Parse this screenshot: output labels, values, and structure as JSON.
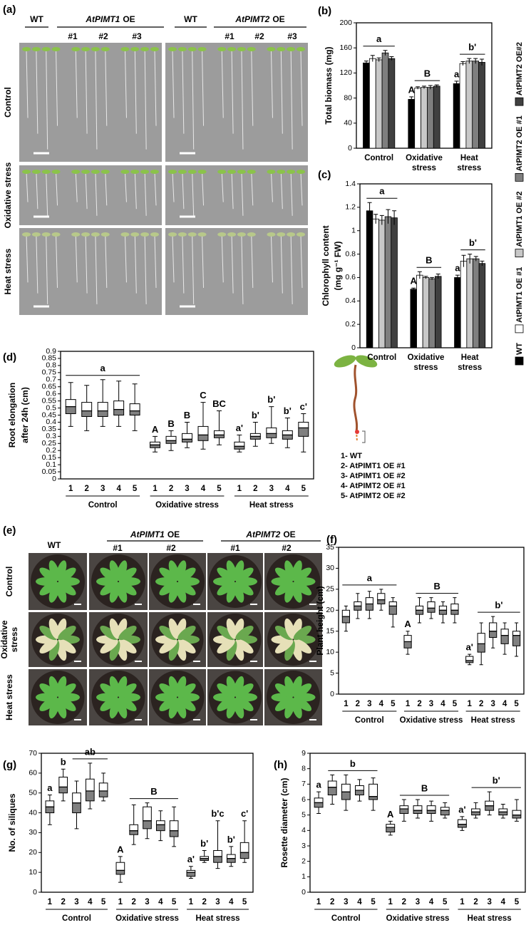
{
  "photo_panels": [
    {
      "panel_label": "(a)",
      "column_groups": [
        {
          "label": [
            "WT"
          ]
        },
        {
          "label": [
            "AtPIMT1",
            "OE"
          ],
          "sub": [
            "#1",
            "#2",
            "#3"
          ]
        },
        {
          "label": [
            "WT"
          ]
        },
        {
          "label": [
            "AtPIMT2",
            "OE"
          ],
          "sub": [
            "#1",
            "#2",
            "#3"
          ]
        }
      ],
      "row_labels": [
        [
          "Control"
        ],
        [
          "Oxidative stress"
        ],
        [
          "Heat stress"
        ]
      ]
    },
    {
      "panel_label": "(e)",
      "column_groups": [
        {
          "label": [
            "WT"
          ]
        },
        {
          "label": [
            "AtPIMT1",
            "OE"
          ],
          "sub": [
            "#1",
            "#2"
          ]
        },
        {
          "label": [
            "AtPIMT2",
            "OE"
          ],
          "sub": [
            "#1",
            "#2"
          ]
        }
      ],
      "row_labels": [
        [
          "Control"
        ],
        [
          "Oxidative",
          "stress"
        ],
        [
          "Heat stress"
        ]
      ]
    }
  ],
  "chart_data": [
    {
      "type": "bar",
      "panel_label": "(b)",
      "ylabel": [
        "Total biomass (mg)"
      ],
      "categories": [
        [
          "Control"
        ],
        [
          "Oxidative",
          "stress"
        ],
        [
          "Heat",
          "stress"
        ]
      ],
      "ylim": [
        0,
        200
      ],
      "yticks": [
        0,
        40,
        80,
        120,
        160,
        200
      ],
      "series": [
        {
          "name": "WT",
          "color": "#000000",
          "values": [
            136,
            78,
            103
          ],
          "errors": [
            3,
            4,
            4
          ]
        },
        {
          "name": "AtPIMT1 OE #1",
          "color": "#ffffff",
          "values": [
            143,
            96,
            135
          ],
          "errors": [
            5,
            2,
            3
          ]
        },
        {
          "name": "AtPIMT1 OE #2",
          "color": "#c8c8c8",
          "values": [
            141,
            97,
            139
          ],
          "errors": [
            3,
            2,
            4
          ]
        },
        {
          "name": "AtPIMT2 OE #1",
          "color": "#7f7f7f",
          "values": [
            152,
            97,
            139
          ],
          "errors": [
            4,
            3,
            4
          ]
        },
        {
          "name": "AtPIMT2 OE#2",
          "color": "#404040",
          "values": [
            143,
            99,
            137
          ],
          "errors": [
            3,
            2,
            5
          ]
        }
      ],
      "letters": [
        [
          "a"
        ],
        [
          "A",
          "B"
        ],
        [
          "a",
          "b'"
        ]
      ],
      "legend": "right"
    },
    {
      "type": "bar",
      "panel_label": "(c)",
      "ylabel": [
        "Chlorophyll content",
        "(mg g⁻¹ FW)"
      ],
      "categories": [
        [
          "Control"
        ],
        [
          "Oxidative",
          "stress"
        ],
        [
          "Heat",
          "stress"
        ]
      ],
      "ylim": [
        0,
        1.4
      ],
      "yticks": [
        0,
        0.2,
        0.4,
        0.6,
        0.8,
        1,
        1.2,
        1.4
      ],
      "series": [
        {
          "name": "WT",
          "color": "#000000",
          "values": [
            1.17,
            0.5,
            0.6
          ],
          "errors": [
            0.07,
            0.01,
            0.02
          ]
        },
        {
          "name": "AtPIMT1 OE #1",
          "color": "#ffffff",
          "values": [
            1.1,
            0.62,
            0.74
          ],
          "errors": [
            0.04,
            0.03,
            0.05
          ]
        },
        {
          "name": "AtPIMT1 OE #2",
          "color": "#c8c8c8",
          "values": [
            1.09,
            0.6,
            0.76
          ],
          "errors": [
            0.04,
            0.01,
            0.04
          ]
        },
        {
          "name": "AtPIMT2 OE #1",
          "color": "#7f7f7f",
          "values": [
            1.12,
            0.59,
            0.76
          ],
          "errors": [
            0.06,
            0.01,
            0.02
          ]
        },
        {
          "name": "AtPIMT2 OE#2",
          "color": "#404040",
          "values": [
            1.11,
            0.61,
            0.72
          ],
          "errors": [
            0.06,
            0.02,
            0.02
          ]
        }
      ],
      "letters": [
        [
          "a"
        ],
        [
          "A",
          "B"
        ],
        [
          "a",
          "b'"
        ]
      ]
    },
    {
      "type": "box",
      "panel_label": "(d)",
      "ylabel": [
        "Root elongation",
        "after 24h (cm)"
      ],
      "categories": [
        [
          "Control"
        ],
        [
          "Oxidative stress"
        ],
        [
          "Heat stress"
        ]
      ],
      "box_labels": [
        "1",
        "2",
        "3",
        "4",
        "5"
      ],
      "ylim": [
        0,
        0.9
      ],
      "yticks": [
        0,
        0.05,
        0.1,
        0.15,
        0.2,
        0.25,
        0.3,
        0.35,
        0.4,
        0.45,
        0.5,
        0.55,
        0.6,
        0.65,
        0.7,
        0.75,
        0.8,
        0.85,
        0.9
      ],
      "lower_color": "#808080",
      "upper_color": "#ffffff",
      "boxes": [
        [
          [
            0.37,
            0.46,
            0.51,
            0.56,
            0.68
          ],
          [
            0.34,
            0.44,
            0.48,
            0.54,
            0.66
          ],
          [
            0.37,
            0.44,
            0.48,
            0.54,
            0.7
          ],
          [
            0.37,
            0.45,
            0.49,
            0.55,
            0.69
          ],
          [
            0.34,
            0.45,
            0.48,
            0.53,
            0.67
          ]
        ],
        [
          [
            0.19,
            0.22,
            0.24,
            0.26,
            0.3
          ],
          [
            0.2,
            0.25,
            0.27,
            0.3,
            0.34
          ],
          [
            0.22,
            0.26,
            0.28,
            0.32,
            0.4
          ],
          [
            0.21,
            0.27,
            0.31,
            0.37,
            0.54
          ],
          [
            0.24,
            0.29,
            0.31,
            0.34,
            0.48
          ]
        ],
        [
          [
            0.19,
            0.21,
            0.23,
            0.26,
            0.31
          ],
          [
            0.23,
            0.28,
            0.3,
            0.32,
            0.4
          ],
          [
            0.25,
            0.29,
            0.32,
            0.36,
            0.51
          ],
          [
            0.22,
            0.28,
            0.31,
            0.34,
            0.43
          ],
          [
            0.19,
            0.3,
            0.36,
            0.4,
            0.46
          ]
        ]
      ],
      "letters": [
        [
          "a"
        ],
        [
          "A",
          "B",
          "B",
          "C",
          "BC"
        ],
        [
          "a'",
          "b'",
          "b'",
          "b'",
          "c'"
        ]
      ],
      "legend_items": [
        "1- WT",
        "2- AtPIMT1 OE #1",
        "3- AtPIMT1 OE #2",
        "4- AtPIMT2 OE #1",
        "5- AtPIMT2 OE #2"
      ]
    },
    {
      "type": "box",
      "panel_label": "(f)",
      "ylabel": [
        "Plant height (cm)"
      ],
      "categories": [
        [
          "Control"
        ],
        [
          "Oxidative stress"
        ],
        [
          "Heat stress"
        ]
      ],
      "box_labels": [
        "1",
        "2",
        "3",
        "4",
        "5"
      ],
      "ylim": [
        0,
        35
      ],
      "yticks": [
        0,
        5,
        10,
        15,
        20,
        25,
        30,
        35
      ],
      "lower_color": "#808080",
      "upper_color": "#ffffff",
      "boxes": [
        [
          [
            15,
            17,
            18.5,
            20,
            21
          ],
          [
            18,
            20,
            21,
            22,
            24
          ],
          [
            18,
            20,
            21.5,
            23,
            24.5
          ],
          [
            20,
            21.5,
            22.5,
            24,
            25
          ],
          [
            16,
            19,
            21,
            22,
            23
          ]
        ],
        [
          [
            9.5,
            11,
            12.5,
            14,
            15
          ],
          [
            17,
            19,
            20,
            21,
            23
          ],
          [
            18,
            19.5,
            20.5,
            22,
            23
          ],
          [
            17,
            19,
            20,
            21,
            22
          ],
          [
            17,
            19,
            20,
            21.5,
            23
          ]
        ],
        [
          [
            7,
            7.5,
            8,
            9,
            9.5
          ],
          [
            7,
            10,
            12,
            14.5,
            17
          ],
          [
            11,
            13.5,
            15,
            17,
            18.5
          ],
          [
            9.5,
            12,
            14,
            15.5,
            17
          ],
          [
            9,
            11.5,
            14,
            15,
            17
          ]
        ]
      ],
      "letters": [
        [
          "a"
        ],
        [
          "A",
          "B"
        ],
        [
          "a'",
          "b'"
        ]
      ]
    },
    {
      "type": "box",
      "panel_label": "(g)",
      "ylabel": [
        "No. of siliques"
      ],
      "categories": [
        [
          "Control"
        ],
        [
          "Oxidative stress"
        ],
        [
          "Heat stress"
        ]
      ],
      "box_labels": [
        "1",
        "2",
        "3",
        "4",
        "5"
      ],
      "ylim": [
        0,
        70
      ],
      "yticks": [
        0,
        10,
        20,
        30,
        40,
        50,
        60,
        70
      ],
      "lower_color": "#808080",
      "upper_color": "#ffffff",
      "boxes": [
        [
          [
            34,
            40,
            43,
            46,
            49
          ],
          [
            46,
            50,
            53,
            58,
            62
          ],
          [
            32,
            40,
            45,
            50,
            56
          ],
          [
            42,
            46,
            51,
            57,
            65
          ],
          [
            46,
            48,
            51,
            55,
            60
          ]
        ],
        [
          [
            5,
            9,
            11,
            15,
            18
          ],
          [
            24,
            29,
            31,
            34,
            44
          ],
          [
            27,
            32,
            36,
            43,
            45
          ],
          [
            26,
            31,
            34,
            36,
            41
          ],
          [
            23,
            28,
            31,
            36,
            43
          ]
        ],
        [
          [
            7,
            8,
            10,
            11,
            13
          ],
          [
            15,
            16,
            17,
            18,
            21
          ],
          [
            12,
            15,
            18,
            21,
            36
          ],
          [
            13,
            15,
            17,
            19,
            23
          ],
          [
            15,
            17,
            20,
            25,
            36
          ]
        ]
      ],
      "letters": [
        [
          "a",
          "b",
          "ab"
        ],
        [
          "A",
          "B"
        ],
        [
          "a'",
          "b'",
          "b'c",
          "b'",
          "c'"
        ]
      ]
    },
    {
      "type": "box",
      "panel_label": "(h)",
      "ylabel": [
        "Rosette diameter (cm)"
      ],
      "categories": [
        [
          "Control"
        ],
        [
          "Oxidative stress"
        ],
        [
          "Heat stress"
        ]
      ],
      "box_labels": [
        "1",
        "2",
        "3",
        "4",
        "5"
      ],
      "ylim": [
        0,
        9
      ],
      "yticks": [
        0,
        1,
        2,
        3,
        4,
        5,
        6,
        7,
        8,
        9
      ],
      "lower_color": "#808080",
      "upper_color": "#ffffff",
      "boxes": [
        [
          [
            5.1,
            5.5,
            5.8,
            6.1,
            6.5
          ],
          [
            5.7,
            6.3,
            6.8,
            7.2,
            7.6
          ],
          [
            5.3,
            6,
            6.5,
            7,
            7.6
          ],
          [
            5.9,
            6.3,
            6.6,
            6.9,
            7.3
          ],
          [
            5.3,
            6,
            6.2,
            7,
            7.4
          ]
        ],
        [
          [
            3.7,
            3.9,
            4.2,
            4.4,
            4.6
          ],
          [
            4.6,
            5.1,
            5.4,
            5.6,
            6
          ],
          [
            4.8,
            5.1,
            5.3,
            5.6,
            6
          ],
          [
            4.6,
            5.1,
            5.3,
            5.6,
            5.9
          ],
          [
            4.8,
            5,
            5.3,
            5.5,
            5.8
          ]
        ],
        [
          [
            4,
            4.2,
            4.4,
            4.7,
            4.9
          ],
          [
            4.8,
            5,
            5.2,
            5.4,
            5.8
          ],
          [
            5,
            5.3,
            5.6,
            5.9,
            6.5
          ],
          [
            4.8,
            5,
            5.2,
            5.4,
            5.7
          ],
          [
            4.6,
            4.8,
            5,
            5.3,
            6
          ]
        ]
      ],
      "letters": [
        [
          "a",
          "b"
        ],
        [
          "A",
          "B"
        ],
        [
          "a'",
          "b'"
        ]
      ]
    }
  ]
}
